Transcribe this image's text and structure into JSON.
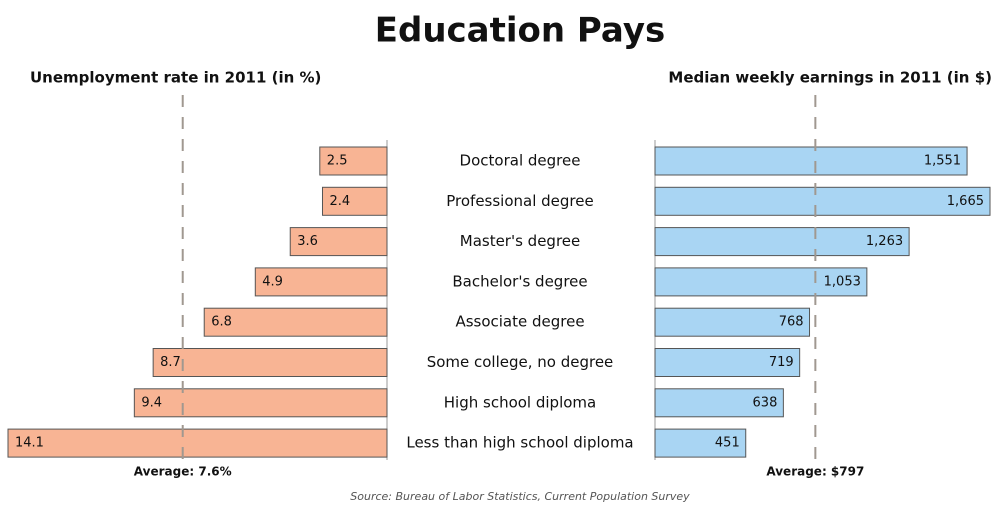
{
  "title": "Education Pays",
  "source": "Source: Bureau of Labor Statistics, Current Population Survey",
  "chart_data": [
    {
      "type": "hbar-left",
      "title": "Unemployment rate in 2011 (in %)",
      "categories": [
        "Doctoral degree",
        "Professional degree",
        "Master's degree",
        "Bachelor's degree",
        "Associate degree",
        "Some college, no degree",
        "High school diploma",
        "Less than high school diploma"
      ],
      "values": [
        2.5,
        2.4,
        3.6,
        4.9,
        6.8,
        8.7,
        9.4,
        14.1
      ],
      "color": "#f8b494",
      "xlim": [
        0,
        14.1
      ],
      "average": {
        "value": 7.6,
        "label": "Average: 7.6%"
      }
    },
    {
      "type": "hbar-right",
      "title": "Median weekly earnings in 2011 (in $)",
      "values": [
        1551,
        1665,
        1263,
        1053,
        768,
        719,
        638,
        451
      ],
      "value_labels": [
        "1,551",
        "1,665",
        "1,263",
        "1,053",
        "768",
        "719",
        "638",
        "451"
      ],
      "color": "#a9d5f3",
      "xlim": [
        0,
        1665
      ],
      "average": {
        "value": 797,
        "label": "Average: $797"
      }
    }
  ]
}
